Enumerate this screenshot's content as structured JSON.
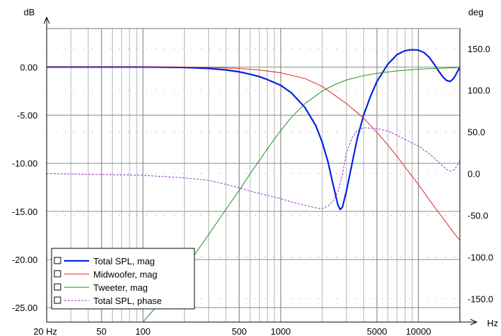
{
  "chart_data": {
    "type": "line",
    "title": "",
    "x_axis": {
      "scale": "log",
      "unit_label": "Hz",
      "range": [
        20,
        20000
      ],
      "tick_labels": [
        {
          "value": 20,
          "label": "20 Hz"
        },
        {
          "value": 50,
          "label": "50"
        },
        {
          "value": 100,
          "label": "100"
        },
        {
          "value": 500,
          "label": "500"
        },
        {
          "value": 1000,
          "label": "1000"
        },
        {
          "value": 5000,
          "label": "5000"
        },
        {
          "value": 10000,
          "label": "10000"
        }
      ]
    },
    "y_left": {
      "unit_label": "dB",
      "range": [
        -26.5,
        4
      ],
      "tick_labels": [
        {
          "value": 0,
          "label": "0.00"
        },
        {
          "value": -5,
          "label": "-5.00"
        },
        {
          "value": -10,
          "label": "-10.00"
        },
        {
          "value": -15,
          "label": "-15.00"
        },
        {
          "value": -20,
          "label": "-20.00"
        },
        {
          "value": -25,
          "label": "-25.00"
        }
      ]
    },
    "y_right": {
      "unit_label": "deg",
      "range": [
        -178,
        174
      ],
      "tick_labels": [
        {
          "value": 150,
          "label": "150.0"
        },
        {
          "value": 100,
          "label": "100.0"
        },
        {
          "value": 50,
          "label": "50.0"
        },
        {
          "value": 0,
          "label": "0.0"
        },
        {
          "value": -50,
          "label": "-50.0"
        },
        {
          "value": -100,
          "label": "-100.0"
        },
        {
          "value": -150,
          "label": "-150.0"
        }
      ]
    },
    "grid": true,
    "legend_position": "bottom-left",
    "series": [
      {
        "name": "Total SPL, mag",
        "axis": "left",
        "color": "#0020e0",
        "style": "solid",
        "width": 2.2,
        "points": [
          [
            20,
            0
          ],
          [
            100,
            0
          ],
          [
            200,
            -0.05
          ],
          [
            300,
            -0.15
          ],
          [
            400,
            -0.3
          ],
          [
            500,
            -0.5
          ],
          [
            600,
            -0.75
          ],
          [
            700,
            -1.0
          ],
          [
            800,
            -1.3
          ],
          [
            1000,
            -1.9
          ],
          [
            1200,
            -2.7
          ],
          [
            1500,
            -4.2
          ],
          [
            1800,
            -6.1
          ],
          [
            2000,
            -7.8
          ],
          [
            2200,
            -9.8
          ],
          [
            2400,
            -12.2
          ],
          [
            2600,
            -14.3
          ],
          [
            2700,
            -14.8
          ],
          [
            2800,
            -14.6
          ],
          [
            3000,
            -12.9
          ],
          [
            3300,
            -10.0
          ],
          [
            3600,
            -7.4
          ],
          [
            4000,
            -5.0
          ],
          [
            4500,
            -3.0
          ],
          [
            5000,
            -1.5
          ],
          [
            6000,
            0.3
          ],
          [
            7000,
            1.3
          ],
          [
            8000,
            1.7
          ],
          [
            9000,
            1.8
          ],
          [
            10000,
            1.75
          ],
          [
            11000,
            1.5
          ],
          [
            12000,
            1.0
          ],
          [
            13000,
            0.3
          ],
          [
            14000,
            -0.4
          ],
          [
            15000,
            -1.0
          ],
          [
            16000,
            -1.4
          ],
          [
            17000,
            -1.5
          ],
          [
            18000,
            -1.2
          ],
          [
            19000,
            -0.6
          ],
          [
            20000,
            0
          ]
        ]
      },
      {
        "name": "Midwoofer, mag",
        "axis": "left",
        "color": "#e02020",
        "style": "solid",
        "width": 1,
        "points": [
          [
            20,
            0
          ],
          [
            200,
            0
          ],
          [
            300,
            -0.05
          ],
          [
            500,
            -0.15
          ],
          [
            700,
            -0.3
          ],
          [
            1000,
            -0.6
          ],
          [
            1500,
            -1.2
          ],
          [
            2000,
            -2.0
          ],
          [
            3000,
            -3.8
          ],
          [
            4000,
            -5.3
          ],
          [
            5000,
            -6.8
          ],
          [
            6000,
            -8.1
          ],
          [
            7000,
            -9.3
          ],
          [
            8000,
            -10.4
          ],
          [
            10000,
            -12.2
          ],
          [
            12000,
            -13.8
          ],
          [
            14000,
            -15.1
          ],
          [
            16000,
            -16.2
          ],
          [
            18000,
            -17.2
          ],
          [
            20000,
            -18.0
          ]
        ]
      },
      {
        "name": "Tweeter, mag",
        "axis": "left",
        "color": "#209020",
        "style": "solid",
        "width": 1,
        "points": [
          [
            100,
            -26.5
          ],
          [
            150,
            -23.6
          ],
          [
            200,
            -21.0
          ],
          [
            300,
            -17.4
          ],
          [
            400,
            -14.8
          ],
          [
            500,
            -12.8
          ],
          [
            600,
            -11.1
          ],
          [
            700,
            -9.7
          ],
          [
            800,
            -8.5
          ],
          [
            1000,
            -6.6
          ],
          [
            1200,
            -5.2
          ],
          [
            1500,
            -3.8
          ],
          [
            2000,
            -2.5
          ],
          [
            2500,
            -1.8
          ],
          [
            3000,
            -1.35
          ],
          [
            4000,
            -0.9
          ],
          [
            5000,
            -0.65
          ],
          [
            7000,
            -0.4
          ],
          [
            10000,
            -0.22
          ],
          [
            15000,
            -0.12
          ],
          [
            20000,
            -0.05
          ]
        ]
      },
      {
        "name": "Total SPL, phase",
        "axis": "right",
        "color": "#9a30c8",
        "style": "dashed",
        "width": 1,
        "points": [
          [
            20,
            0
          ],
          [
            50,
            -1
          ],
          [
            100,
            -2
          ],
          [
            200,
            -5
          ],
          [
            300,
            -8
          ],
          [
            400,
            -13
          ],
          [
            500,
            -17
          ],
          [
            600,
            -21
          ],
          [
            800,
            -26
          ],
          [
            1000,
            -30
          ],
          [
            1200,
            -34
          ],
          [
            1500,
            -38
          ],
          [
            1800,
            -41
          ],
          [
            2000,
            -42
          ],
          [
            2200,
            -39
          ],
          [
            2400,
            -33
          ],
          [
            2600,
            -22
          ],
          [
            2800,
            -2
          ],
          [
            3000,
            25
          ],
          [
            3300,
            43
          ],
          [
            3600,
            52
          ],
          [
            4000,
            55
          ],
          [
            5000,
            54
          ],
          [
            6000,
            51
          ],
          [
            7000,
            46
          ],
          [
            8000,
            41
          ],
          [
            10000,
            33
          ],
          [
            12000,
            24
          ],
          [
            14000,
            14
          ],
          [
            15000,
            9
          ],
          [
            16000,
            5
          ],
          [
            17000,
            3
          ],
          [
            18000,
            4
          ],
          [
            19000,
            9
          ],
          [
            20000,
            16
          ]
        ]
      }
    ]
  }
}
